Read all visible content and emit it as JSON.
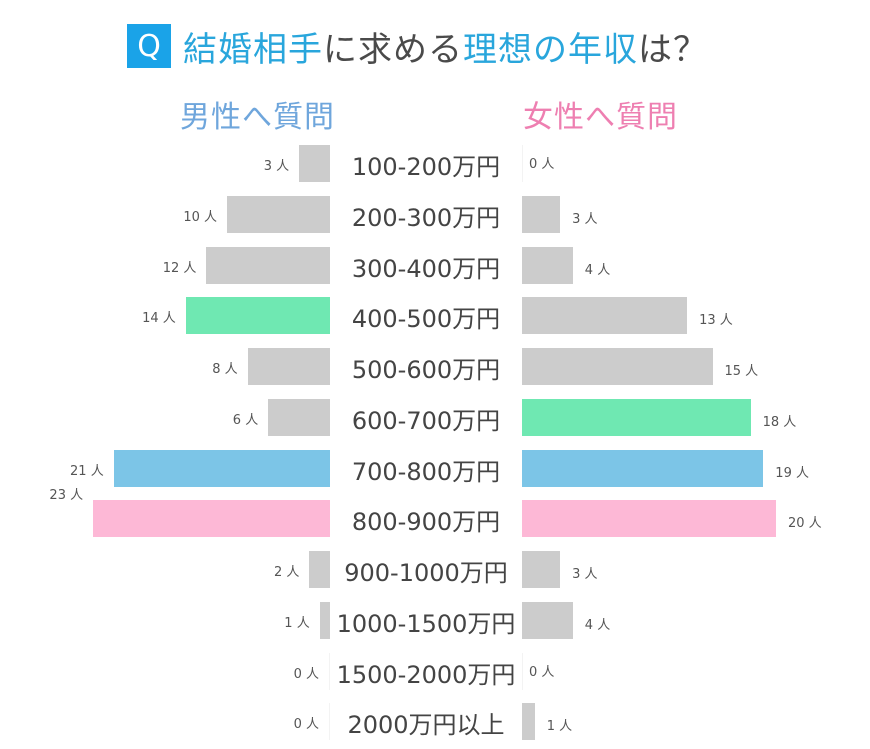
{
  "title": {
    "badge": "Q",
    "parts": [
      {
        "text": "結婚相手",
        "color": "blue"
      },
      {
        "text": "に求める",
        "color": "dark"
      },
      {
        "text": "理想の年収",
        "color": "blue"
      },
      {
        "text": "は？",
        "color": "dark"
      }
    ]
  },
  "headers": {
    "men": "男性へ質問",
    "women": "女性へ質問"
  },
  "colors": {
    "default": "#cccccc",
    "green": "#6fe8b2",
    "blue": "#7cc5e7",
    "pink": "#fdb8d6",
    "badge": "#1aa3e8",
    "title_blue": "#29a6dc",
    "men_header": "#6fa6dc",
    "women_header": "#ee7fb1"
  },
  "chart_data": {
    "type": "bar",
    "orientation": "horizontal-butterfly",
    "title": "結婚相手に求める理想の年収は？",
    "unit": "人",
    "categories": [
      "100-200万円",
      "200-300万円",
      "300-400万円",
      "400-500万円",
      "500-600万円",
      "600-700万円",
      "700-800万円",
      "800-900万円",
      "900-1000万円",
      "1000-1500万円",
      "1500-2000万円",
      "2000万円以上"
    ],
    "series": [
      {
        "name": "男性へ質問",
        "side": "left",
        "values": [
          3,
          10,
          12,
          14,
          8,
          6,
          21,
          23,
          2,
          1,
          0,
          0
        ],
        "highlight": {
          "3": "green",
          "6": "blue",
          "7": "pink"
        }
      },
      {
        "name": "女性へ質問",
        "side": "right",
        "values": [
          0,
          3,
          4,
          13,
          15,
          18,
          19,
          20,
          3,
          4,
          0,
          1
        ],
        "highlight": {
          "5": "green",
          "6": "blue",
          "7": "pink"
        }
      }
    ],
    "grid": false,
    "legend": "column headers above each side"
  }
}
